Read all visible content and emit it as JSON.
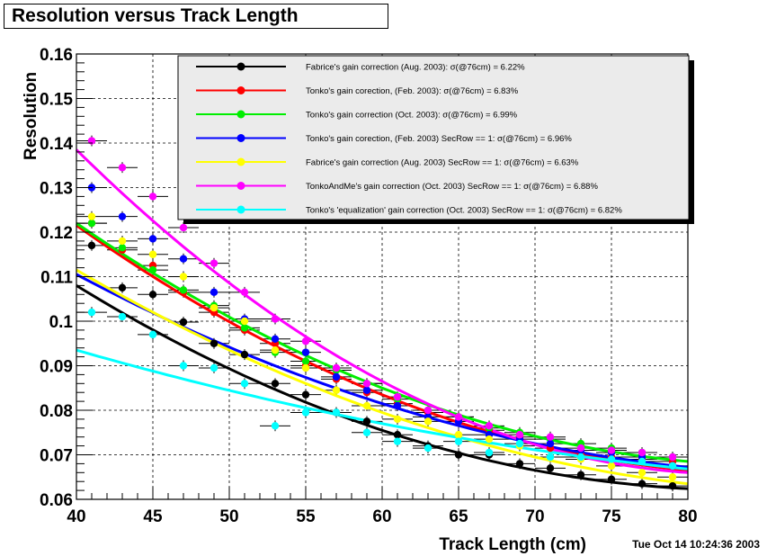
{
  "chart_data": {
    "type": "scatter",
    "title": "Resolution versus Track Length",
    "xlabel": "Track Length (cm)",
    "ylabel": "Resolution",
    "xlim": [
      40,
      80
    ],
    "ylim": [
      0.06,
      0.16
    ],
    "x_ticks": [
      "40",
      "45",
      "50",
      "55",
      "60",
      "65",
      "70",
      "75",
      "80"
    ],
    "y_ticks": [
      "0.06",
      "0.07",
      "0.08",
      "0.09",
      "0.1",
      "0.11",
      "0.12",
      "0.13",
      "0.14",
      "0.15",
      "0.16"
    ],
    "grid": true,
    "legend_position": "top-right",
    "timestamp": "Tue Oct 14 10:24:36 2003",
    "x": [
      41,
      43,
      45,
      47,
      49,
      51,
      53,
      55,
      57,
      59,
      61,
      63,
      65,
      67,
      69,
      71,
      73,
      75,
      77,
      79
    ],
    "series": [
      {
        "name": "Fabrice's gain correction (Aug. 2003):  σ(@76cm) =  6.22%",
        "color": "#000000",
        "values": [
          0.117,
          0.1075,
          0.106,
          0.0998,
          0.095,
          0.0925,
          0.086,
          0.0835,
          0.0795,
          0.0775,
          0.0745,
          0.072,
          0.07,
          0.07,
          0.068,
          0.067,
          0.0655,
          0.0645,
          0.0635,
          0.063
        ],
        "fit": [
          0.108,
          0.0755,
          0.0624
        ]
      },
      {
        "name": "Tonko's gain corection, (Feb. 2003):  σ(@76cm) =  6.83%",
        "color": "#ff0000",
        "values": [
          0.122,
          0.116,
          0.1125,
          0.1065,
          0.102,
          0.098,
          0.095,
          0.09,
          0.087,
          0.084,
          0.0815,
          0.0795,
          0.0775,
          0.0755,
          0.074,
          0.0715,
          0.07,
          0.0695,
          0.069,
          0.0685
        ],
        "fit": [
          0.1215,
          0.0835,
          0.0665
        ]
      },
      {
        "name": "Tonko's gain correction (Oct. 2003):  σ(@76cm) =  6.99%",
        "color": "#00ee00",
        "values": [
          0.122,
          0.1165,
          0.1115,
          0.107,
          0.1035,
          0.0985,
          0.093,
          0.091,
          0.089,
          0.086,
          0.0825,
          0.08,
          0.0785,
          0.076,
          0.075,
          0.0735,
          0.0725,
          0.0715,
          0.0705,
          0.0695
        ],
        "fit": [
          0.122,
          0.085,
          0.0685
        ]
      },
      {
        "name": "Tonko's gain corection, (Feb. 2003) SecRow == 1:  σ(@76cm) =  6.96%",
        "color": "#0000ff",
        "values": [
          0.13,
          0.1235,
          0.1185,
          0.114,
          0.1065,
          0.1005,
          0.096,
          0.093,
          0.0875,
          0.0845,
          0.081,
          0.0785,
          0.0775,
          0.0745,
          0.0735,
          0.0725,
          0.071,
          0.0705,
          0.0695,
          0.0675
        ],
        "fit": [
          0.1105,
          0.0815,
          0.0672
        ]
      },
      {
        "name": "Fabrice's gain correction (Aug. 2003) SecRow == 1:  σ(@76cm) =  6.63%",
        "color": "#ffff00",
        "values": [
          0.1235,
          0.118,
          0.115,
          0.11,
          0.103,
          0.1,
          0.0935,
          0.0895,
          0.0845,
          0.081,
          0.078,
          0.0775,
          0.0745,
          0.0735,
          0.072,
          0.0695,
          0.069,
          0.0675,
          0.066,
          0.065
        ],
        "fit": [
          0.1115,
          0.0795,
          0.0635
        ]
      },
      {
        "name": "TonkoAndMe's gain correction (Oct. 2003) SecRow == 1:  σ(@76cm) =  6.88%",
        "color": "#ff00ff",
        "values": [
          0.1405,
          0.1345,
          0.128,
          0.121,
          0.113,
          0.1065,
          0.1005,
          0.0955,
          0.0895,
          0.086,
          0.083,
          0.08,
          0.0785,
          0.0765,
          0.0745,
          0.074,
          0.0715,
          0.071,
          0.0705,
          0.0695
        ],
        "fit": [
          0.1385,
          0.0865,
          0.066
        ]
      },
      {
        "name": "Tonko's 'equalization' gain correction (Oct. 2003) SecRow == 1:  σ(@76cm) =  6.82%",
        "color": "#00ffff",
        "values": [
          0.102,
          0.101,
          0.097,
          0.09,
          0.0895,
          0.086,
          0.0765,
          0.0795,
          0.0795,
          0.075,
          0.073,
          0.0715,
          0.073,
          0.0705,
          0.0725,
          0.0695,
          0.0695,
          0.069,
          0.0685,
          0.0675
        ],
        "fit": [
          0.0935,
          0.077,
          0.0668
        ]
      }
    ]
  }
}
